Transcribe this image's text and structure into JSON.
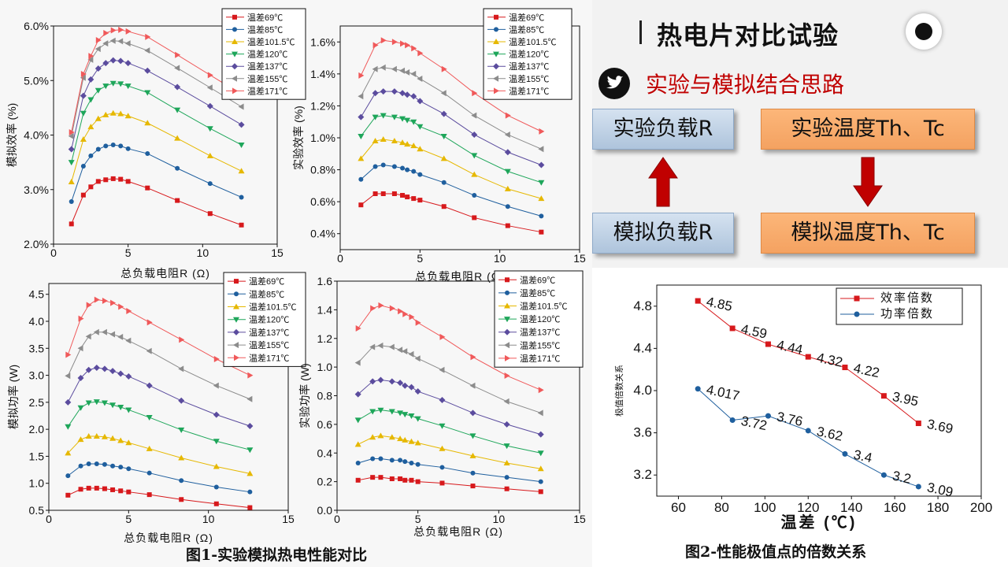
{
  "slide": {
    "title": "热电片对比试验",
    "section_title": "实验与模拟结合思路",
    "box_exp_load": "实验负载R",
    "box_exp_temp": "实验温度Th、Tc",
    "box_sim_load": "模拟负载R",
    "box_sim_temp": "模拟温度Th、Tc",
    "caption_fig1": "图1-实验模拟热电性能对比",
    "caption_fig2": "图2-性能极值点的倍数关系",
    "icons": [
      "record-icon",
      "bird-icon",
      "arrow-up-icon",
      "arrow-down-icon"
    ],
    "colors": {
      "accent_red": "#c00000",
      "box_blue": "#aec4dc",
      "box_orange": "#f4a261"
    }
  },
  "chart_data": [
    {
      "id": "sim_eff",
      "type": "line",
      "xlabel": "总负载电阻R (Ω)",
      "ylabel": "模拟效率 (%)",
      "xlim": [
        0,
        15
      ],
      "ylim": [
        2.0,
        6.0
      ],
      "xticks": [
        "0",
        "5",
        "10",
        "15"
      ],
      "yticks": [
        "2.0%",
        "3.0%",
        "4.0%",
        "5.0%",
        "6.0%"
      ],
      "x": [
        1.2,
        2.0,
        2.5,
        3.0,
        3.5,
        4.0,
        4.5,
        5.0,
        6.3,
        8.3,
        10.5,
        12.6
      ],
      "series": [
        {
          "name": "温差69℃",
          "values": [
            2.37,
            2.9,
            3.05,
            3.15,
            3.18,
            3.2,
            3.19,
            3.15,
            3.03,
            2.8,
            2.56,
            2.35
          ]
        },
        {
          "name": "温差85℃",
          "values": [
            2.78,
            3.43,
            3.62,
            3.74,
            3.8,
            3.82,
            3.8,
            3.75,
            3.66,
            3.39,
            3.11,
            2.86
          ]
        },
        {
          "name": "温差101.5℃",
          "values": [
            3.14,
            3.92,
            4.15,
            4.3,
            4.37,
            4.4,
            4.39,
            4.35,
            4.22,
            3.94,
            3.62,
            3.34
          ]
        },
        {
          "name": "温差120℃",
          "values": [
            3.5,
            4.4,
            4.65,
            4.82,
            4.9,
            4.95,
            4.94,
            4.9,
            4.78,
            4.46,
            4.12,
            3.82
          ]
        },
        {
          "name": "温差137℃",
          "values": [
            3.74,
            4.72,
            5.02,
            5.22,
            5.32,
            5.37,
            5.36,
            5.32,
            5.18,
            4.88,
            4.53,
            4.19
          ]
        },
        {
          "name": "温差155℃",
          "values": [
            3.98,
            5.05,
            5.38,
            5.58,
            5.68,
            5.73,
            5.72,
            5.68,
            5.55,
            5.23,
            4.87,
            4.52
          ]
        },
        {
          "name": "温差171℃",
          "values": [
            4.05,
            5.12,
            5.45,
            5.74,
            5.87,
            5.92,
            5.93,
            5.9,
            5.8,
            5.47,
            5.1,
            4.75
          ]
        }
      ]
    },
    {
      "id": "exp_eff",
      "type": "line",
      "xlabel": "总负载电阻R (Ω)",
      "ylabel": "实验效率 (%)",
      "xlim": [
        0,
        15
      ],
      "ylim": [
        0.3,
        1.7
      ],
      "xticks": [
        "0",
        "5",
        "10",
        "15"
      ],
      "yticks": [
        "0.4%",
        "0.6%",
        "0.8%",
        "1.0%",
        "1.2%",
        "1.4%",
        "1.6%"
      ],
      "x": [
        1.3,
        2.2,
        2.7,
        3.4,
        3.9,
        4.2,
        4.6,
        5.0,
        6.5,
        8.4,
        10.5,
        12.6
      ],
      "series": [
        {
          "name": "温差69℃",
          "values": [
            0.58,
            0.65,
            0.65,
            0.65,
            0.64,
            0.63,
            0.62,
            0.61,
            0.57,
            0.5,
            0.45,
            0.41
          ]
        },
        {
          "name": "温差85℃",
          "values": [
            0.74,
            0.82,
            0.83,
            0.82,
            0.81,
            0.8,
            0.79,
            0.77,
            0.72,
            0.64,
            0.57,
            0.51
          ]
        },
        {
          "name": "温差101.5℃",
          "values": [
            0.87,
            0.98,
            0.99,
            0.98,
            0.97,
            0.96,
            0.95,
            0.93,
            0.87,
            0.77,
            0.68,
            0.62
          ]
        },
        {
          "name": "温差120℃",
          "values": [
            1.01,
            1.13,
            1.14,
            1.13,
            1.12,
            1.11,
            1.1,
            1.07,
            1.01,
            0.89,
            0.79,
            0.72
          ]
        },
        {
          "name": "温差137℃",
          "values": [
            1.13,
            1.28,
            1.29,
            1.29,
            1.28,
            1.27,
            1.26,
            1.23,
            1.15,
            1.02,
            0.91,
            0.83
          ]
        },
        {
          "name": "温差155℃",
          "values": [
            1.26,
            1.43,
            1.44,
            1.43,
            1.42,
            1.41,
            1.4,
            1.37,
            1.28,
            1.14,
            1.02,
            0.93
          ]
        },
        {
          "name": "温差171℃",
          "values": [
            1.39,
            1.58,
            1.61,
            1.6,
            1.59,
            1.58,
            1.56,
            1.53,
            1.43,
            1.28,
            1.14,
            1.04
          ]
        }
      ]
    },
    {
      "id": "sim_pow",
      "type": "line",
      "xlabel": "总负载电阻R (Ω)",
      "ylabel": "模拟功率 (W)",
      "xlim": [
        0,
        15
      ],
      "ylim": [
        0.5,
        4.7
      ],
      "xticks": [
        "0",
        "5",
        "10",
        "15"
      ],
      "yticks": [
        "0.5",
        "1.0",
        "1.5",
        "2.0",
        "2.5",
        "3.0",
        "3.5",
        "4.0",
        "4.5"
      ],
      "x": [
        1.2,
        2.0,
        2.5,
        3.0,
        3.5,
        4.0,
        4.5,
        5.0,
        6.3,
        8.3,
        10.5,
        12.6
      ],
      "series": [
        {
          "name": "温差69℃",
          "values": [
            0.78,
            0.89,
            0.91,
            0.91,
            0.9,
            0.88,
            0.86,
            0.84,
            0.79,
            0.7,
            0.62,
            0.55
          ]
        },
        {
          "name": "温差85℃",
          "values": [
            1.14,
            1.32,
            1.36,
            1.36,
            1.35,
            1.32,
            1.3,
            1.27,
            1.19,
            1.05,
            0.93,
            0.84
          ]
        },
        {
          "name": "温差101.5℃",
          "values": [
            1.56,
            1.81,
            1.87,
            1.87,
            1.86,
            1.83,
            1.79,
            1.75,
            1.64,
            1.47,
            1.31,
            1.18
          ]
        },
        {
          "name": "温差120℃",
          "values": [
            2.05,
            2.4,
            2.49,
            2.51,
            2.49,
            2.45,
            2.41,
            2.36,
            2.22,
            1.99,
            1.78,
            1.62
          ]
        },
        {
          "name": "温差137℃",
          "values": [
            2.5,
            2.95,
            3.1,
            3.14,
            3.12,
            3.08,
            3.03,
            2.98,
            2.81,
            2.53,
            2.27,
            2.06
          ]
        },
        {
          "name": "温差155℃",
          "values": [
            2.99,
            3.5,
            3.72,
            3.8,
            3.8,
            3.76,
            3.71,
            3.64,
            3.45,
            3.12,
            2.81,
            2.56
          ]
        },
        {
          "name": "温差171℃",
          "values": [
            3.38,
            4.05,
            4.3,
            4.4,
            4.38,
            4.34,
            4.27,
            4.19,
            3.98,
            3.66,
            3.3,
            3.0
          ]
        }
      ]
    },
    {
      "id": "exp_pow",
      "type": "line",
      "xlabel": "总负载电阻R (Ω)",
      "ylabel": "实验功率 (W)",
      "xlim": [
        0,
        15
      ],
      "ylim": [
        0.0,
        1.6
      ],
      "xticks": [
        "0",
        "5",
        "10",
        "15"
      ],
      "yticks": [
        "0.0",
        "0.2",
        "0.4",
        "0.6",
        "0.8",
        "1.0",
        "1.2",
        "1.4",
        "1.6"
      ],
      "x": [
        1.3,
        2.2,
        2.7,
        3.4,
        3.9,
        4.2,
        4.6,
        5.0,
        6.5,
        8.4,
        10.5,
        12.6
      ],
      "series": [
        {
          "name": "温差69℃",
          "values": [
            0.21,
            0.23,
            0.23,
            0.22,
            0.22,
            0.21,
            0.21,
            0.2,
            0.19,
            0.17,
            0.15,
            0.13
          ]
        },
        {
          "name": "温差85℃",
          "values": [
            0.33,
            0.36,
            0.36,
            0.35,
            0.35,
            0.34,
            0.33,
            0.32,
            0.3,
            0.26,
            0.23,
            0.2
          ]
        },
        {
          "name": "温差101.5℃",
          "values": [
            0.46,
            0.51,
            0.52,
            0.51,
            0.5,
            0.49,
            0.48,
            0.47,
            0.43,
            0.38,
            0.33,
            0.29
          ]
        },
        {
          "name": "温差120℃",
          "values": [
            0.63,
            0.69,
            0.7,
            0.69,
            0.68,
            0.67,
            0.66,
            0.64,
            0.59,
            0.52,
            0.45,
            0.4
          ]
        },
        {
          "name": "温差137℃",
          "values": [
            0.81,
            0.9,
            0.91,
            0.9,
            0.89,
            0.87,
            0.86,
            0.83,
            0.77,
            0.68,
            0.6,
            0.53
          ]
        },
        {
          "name": "温差155℃",
          "values": [
            1.03,
            1.14,
            1.15,
            1.14,
            1.12,
            1.11,
            1.09,
            1.06,
            0.98,
            0.87,
            0.76,
            0.68
          ]
        },
        {
          "name": "温差171℃",
          "values": [
            1.27,
            1.41,
            1.43,
            1.41,
            1.39,
            1.37,
            1.35,
            1.31,
            1.21,
            1.07,
            0.94,
            0.84
          ]
        }
      ]
    },
    {
      "id": "ratio",
      "type": "line",
      "xlabel": "温差 (℃)",
      "ylabel": "极值倍数关系",
      "xlim": [
        50,
        200
      ],
      "ylim": [
        3.0,
        5.0
      ],
      "xticks": [
        "60",
        "80",
        "100",
        "120",
        "140",
        "160",
        "180",
        "200"
      ],
      "yticks": [
        "3.2",
        "3.6",
        "4.0",
        "4.4",
        "4.8"
      ],
      "x": [
        69,
        85,
        101.5,
        120,
        137,
        155,
        171
      ],
      "series": [
        {
          "name": "效率倍数",
          "values": [
            4.85,
            4.59,
            4.44,
            4.32,
            4.22,
            3.95,
            3.69
          ],
          "labels": [
            "4.85",
            "4.59",
            "4.44",
            "4.32",
            "4.22",
            "3.95",
            "3.69"
          ]
        },
        {
          "name": "功率倍数",
          "values": [
            4.017,
            3.72,
            3.76,
            3.62,
            3.4,
            3.2,
            3.09
          ],
          "labels": [
            "4.017",
            "3.72",
            "3.76",
            "3.62",
            "3.4",
            "3.2",
            "3.09"
          ]
        }
      ]
    }
  ]
}
